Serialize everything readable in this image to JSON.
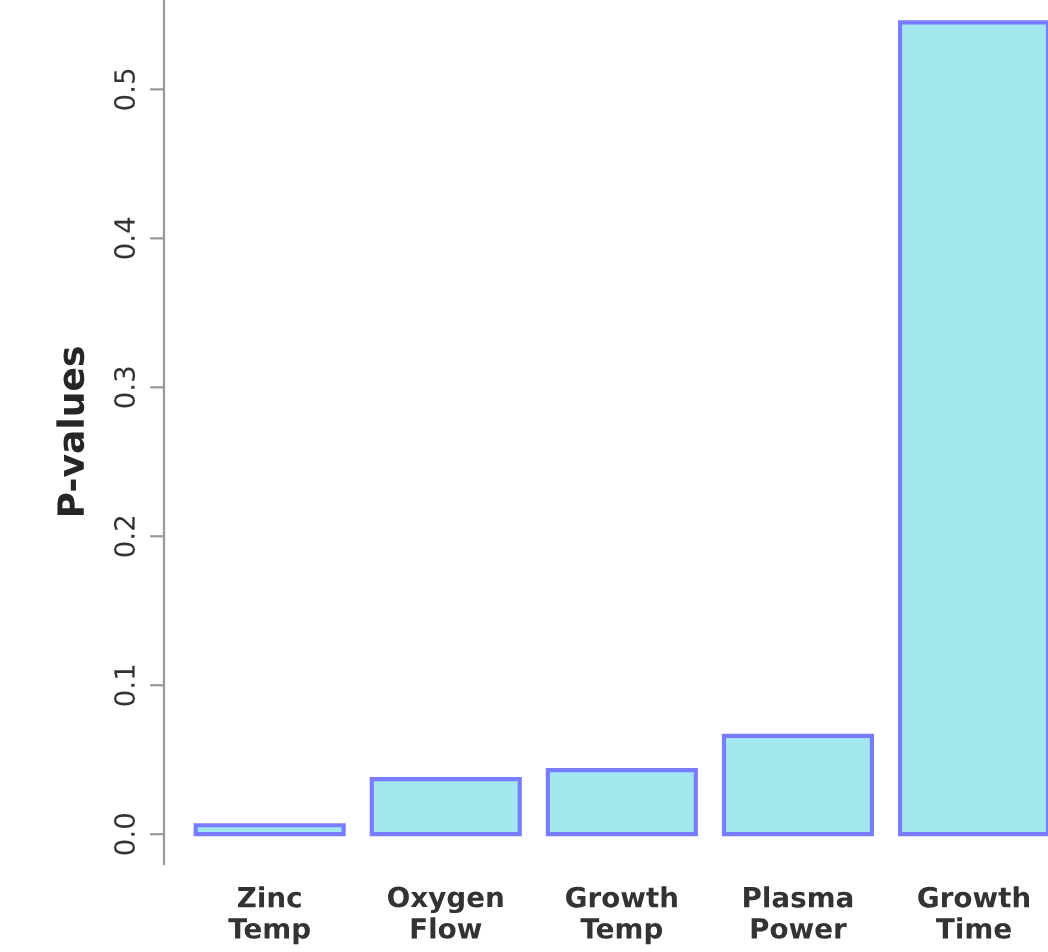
{
  "chart_data": {
    "type": "bar",
    "ylabel": "P-values",
    "categories": [
      "Zinc\nTemp",
      "Oxygen\nFlow",
      "Growth\nTemp",
      "Plasma\nPower",
      "Growth\nTime"
    ],
    "values": [
      0.006,
      0.037,
      0.043,
      0.066,
      0.545
    ],
    "color": "#a2e8ee",
    "ylim": [
      -0.02,
      0.56
    ],
    "yticks": [
      {
        "value": 0,
        "label": "0.0"
      },
      {
        "value": 0.1,
        "label": "0.1"
      },
      {
        "value": 0.2,
        "label": "0.2"
      },
      {
        "value": 0.3,
        "label": "0.3"
      },
      {
        "value": 0.4,
        "label": "0.4"
      },
      {
        "value": 0.5,
        "label": "0.5"
      }
    ],
    "grid": false
  }
}
